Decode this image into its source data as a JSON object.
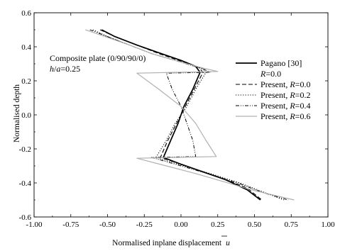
{
  "chart_data": {
    "type": "line",
    "xlabel": "Normalised inplane displacement",
    "xlabel_symbol": "u",
    "ylabel": "Normalised depth",
    "xlim": [
      -1.0,
      1.0
    ],
    "ylim": [
      -0.6,
      0.6
    ],
    "xticks": [
      "-1.00",
      "-0.75",
      "-0.50",
      "-0.25",
      "0.00",
      "0.25",
      "0.50",
      "0.75",
      "1.00"
    ],
    "yticks": [
      "-0.6",
      "-0.4",
      "-0.2",
      "0.0",
      "0.2",
      "0.4",
      "0.6"
    ],
    "annotations": [
      "Composite plate (0/90/90/0)",
      "h/a=0.25"
    ],
    "legend_position": "right",
    "series": [
      {
        "name": "Pagano [30]",
        "name_line2": "R=0.0",
        "style": "solid",
        "color": "#000000",
        "points": [
          [
            -0.54,
            0.5
          ],
          [
            -0.45,
            0.46
          ],
          [
            -0.3,
            0.41
          ],
          [
            -0.15,
            0.365
          ],
          [
            0.0,
            0.32
          ],
          [
            0.1,
            0.285
          ],
          [
            0.13,
            0.25
          ],
          [
            0.08,
            0.15
          ],
          [
            0.02,
            0.05
          ],
          [
            -0.02,
            -0.05
          ],
          [
            -0.07,
            -0.15
          ],
          [
            -0.12,
            -0.25
          ],
          [
            0.0,
            -0.29
          ],
          [
            0.15,
            -0.335
          ],
          [
            0.3,
            -0.38
          ],
          [
            0.45,
            -0.44
          ],
          [
            0.54,
            -0.5
          ]
        ]
      },
      {
        "name": "Present, R=0.0",
        "style": "dash",
        "color": "#000000",
        "points": [
          [
            -0.55,
            0.5
          ],
          [
            -0.45,
            0.46
          ],
          [
            -0.3,
            0.41
          ],
          [
            -0.15,
            0.36
          ],
          [
            0.0,
            0.315
          ],
          [
            0.12,
            0.28
          ],
          [
            0.15,
            0.25
          ],
          [
            0.09,
            0.15
          ],
          [
            0.03,
            0.05
          ],
          [
            -0.03,
            -0.05
          ],
          [
            -0.09,
            -0.15
          ],
          [
            -0.14,
            -0.25
          ],
          [
            0.0,
            -0.29
          ],
          [
            0.15,
            -0.335
          ],
          [
            0.3,
            -0.38
          ],
          [
            0.45,
            -0.43
          ],
          [
            0.55,
            -0.5
          ]
        ]
      },
      {
        "name": "Present, R=0.2",
        "style": "dot",
        "color": "#000000",
        "points": [
          [
            -0.6,
            0.5
          ],
          [
            -0.5,
            0.46
          ],
          [
            -0.35,
            0.41
          ],
          [
            -0.2,
            0.36
          ],
          [
            0.0,
            0.31
          ],
          [
            0.15,
            0.27
          ],
          [
            0.17,
            0.25
          ],
          [
            0.1,
            0.15
          ],
          [
            0.04,
            0.05
          ],
          [
            -0.04,
            -0.05
          ],
          [
            -0.1,
            -0.15
          ],
          [
            -0.17,
            -0.25
          ],
          [
            0.0,
            -0.295
          ],
          [
            0.2,
            -0.345
          ],
          [
            0.4,
            -0.4
          ],
          [
            0.55,
            -0.45
          ],
          [
            0.7,
            -0.5
          ]
        ]
      },
      {
        "name": "Present, R=0.4",
        "style": "dashdotdot",
        "color": "#000000",
        "points": [
          [
            -0.62,
            0.5
          ],
          [
            -0.5,
            0.46
          ],
          [
            -0.35,
            0.41
          ],
          [
            -0.2,
            0.36
          ],
          [
            0.0,
            0.31
          ],
          [
            0.15,
            0.27
          ],
          [
            0.2,
            0.25
          ],
          [
            -0.1,
            0.245
          ],
          [
            -0.06,
            0.15
          ],
          [
            0.0,
            0.05
          ],
          [
            0.04,
            -0.05
          ],
          [
            0.08,
            -0.15
          ],
          [
            0.1,
            -0.245
          ],
          [
            -0.2,
            -0.25
          ],
          [
            0.0,
            -0.3
          ],
          [
            0.2,
            -0.35
          ],
          [
            0.4,
            -0.405
          ],
          [
            0.55,
            -0.455
          ],
          [
            0.73,
            -0.5
          ]
        ]
      },
      {
        "name": "Present, R=0.6",
        "style": "solid",
        "color": "#b0b0b0",
        "points": [
          [
            -0.65,
            0.5
          ],
          [
            -0.5,
            0.455
          ],
          [
            -0.35,
            0.41
          ],
          [
            -0.2,
            0.36
          ],
          [
            0.0,
            0.31
          ],
          [
            0.15,
            0.275
          ],
          [
            0.25,
            0.255
          ],
          [
            -0.3,
            0.245
          ],
          [
            -0.15,
            0.15
          ],
          [
            0.0,
            0.05
          ],
          [
            0.1,
            -0.05
          ],
          [
            0.17,
            -0.15
          ],
          [
            0.24,
            -0.245
          ],
          [
            -0.3,
            -0.255
          ],
          [
            -0.1,
            -0.3
          ],
          [
            0.1,
            -0.345
          ],
          [
            0.3,
            -0.395
          ],
          [
            0.5,
            -0.445
          ],
          [
            0.77,
            -0.5
          ]
        ]
      }
    ]
  }
}
